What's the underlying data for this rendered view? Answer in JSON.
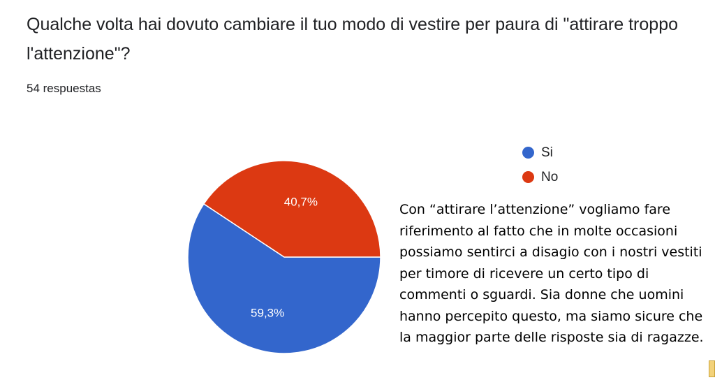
{
  "question": {
    "title": "Qualche volta hai dovuto cambiare il tuo modo di vestire per paura di \"attirare troppo l'attenzione\"?",
    "response_count": "54 respuestas"
  },
  "legend": [
    {
      "label": "Si",
      "color": "#3366cc"
    },
    {
      "label": "No",
      "color": "#dc3912"
    }
  ],
  "explanation": "Con “attirare l’attenzione” vogliamo fare riferimento al fatto che in molte occasioni possiamo sentirci a disagio con i nostri vestiti per timore di ricevere un certo tipo di commenti o sguardi. Sia donne che uomini hanno percepito questo, ma siamo sicure che la maggior parte delle risposte sia di ragazze.",
  "chart_data": {
    "type": "pie",
    "categories": [
      "Si",
      "No"
    ],
    "values": [
      59.3,
      40.7
    ],
    "labels": [
      "59,3%",
      "40,7%"
    ],
    "colors": [
      "#3366cc",
      "#dc3912"
    ],
    "legend_position": "right"
  }
}
